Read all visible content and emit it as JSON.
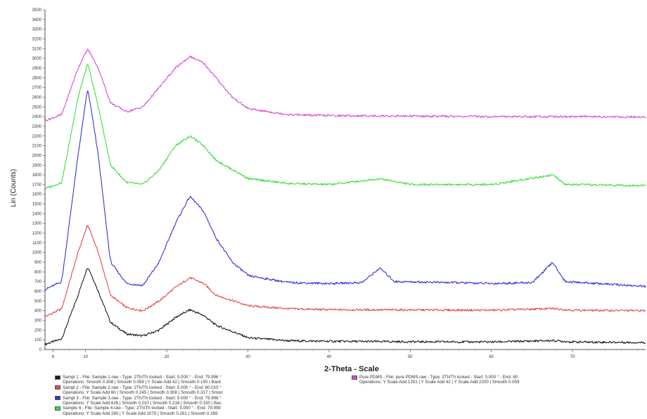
{
  "chart_data": {
    "type": "line",
    "title": "",
    "xlabel": "2-Theta - Scale",
    "ylabel": "Lin (Counts)",
    "xlim": [
      5,
      79
    ],
    "ylim": [
      0,
      3500
    ],
    "x_ticks": [
      "6",
      "10",
      "20",
      "30",
      "40",
      "50",
      "60",
      "70"
    ],
    "y_ticks": [
      "0",
      "100",
      "200",
      "300",
      "400",
      "500",
      "600",
      "700",
      "800",
      "900",
      "1000",
      "1100",
      "1200",
      "1300",
      "1400",
      "1500",
      "1600",
      "1700",
      "1800",
      "1900",
      "2000",
      "2100",
      "2200",
      "2300",
      "2400",
      "2500",
      "2600",
      "2700",
      "2800",
      "2900",
      "3000",
      "3100",
      "3200",
      "3300",
      "3400",
      "3500"
    ],
    "grid": false,
    "legend_position": "bottom",
    "series": [
      {
        "name": "Sampl 1",
        "color": "#1a1a1a",
        "baseline": 75,
        "peaks": [
          {
            "center": 10.2,
            "height": 790,
            "width": 1.6
          },
          {
            "center": 22.8,
            "height": 330,
            "width": 3.5
          },
          {
            "center": 28.5,
            "height": 60,
            "width": 0.6
          },
          {
            "center": 67.5,
            "height": 15,
            "width": 1.0
          }
        ],
        "points": [
          [
            5,
            55
          ],
          [
            7,
            110
          ],
          [
            9,
            560
          ],
          [
            10.2,
            860
          ],
          [
            11.5,
            600
          ],
          [
            13,
            280
          ],
          [
            15,
            160
          ],
          [
            17,
            140
          ],
          [
            19,
            200
          ],
          [
            21,
            330
          ],
          [
            22.8,
            410
          ],
          [
            24.5,
            350
          ],
          [
            26,
            250
          ],
          [
            28.5,
            170
          ],
          [
            30,
            120
          ],
          [
            35,
            90
          ],
          [
            40,
            85
          ],
          [
            50,
            80
          ],
          [
            60,
            78
          ],
          [
            67.5,
            92
          ],
          [
            70,
            78
          ],
          [
            79,
            72
          ]
        ],
        "legend_text": "Sampl 1 - File: Sample 1.raw - Type: 2Th/Th locked - Start: 5.000 ° - End: 79.996 °",
        "operations": "Operations: Smooth 0.308 | Smooth 0.059 | Y Scale Add 42 | Smooth 0.150 | Back"
      },
      {
        "name": "Sampl 2",
        "color": "#e24a4a",
        "baseline": 405,
        "peaks": [
          {
            "center": 10.2,
            "height": 880,
            "width": 1.6
          },
          {
            "center": 22.8,
            "height": 330,
            "width": 3.5
          },
          {
            "center": 67.5,
            "height": 15,
            "width": 1.0
          }
        ],
        "points": [
          [
            5,
            340
          ],
          [
            7,
            420
          ],
          [
            9,
            1000
          ],
          [
            10.2,
            1290
          ],
          [
            11.5,
            1000
          ],
          [
            13,
            560
          ],
          [
            15,
            430
          ],
          [
            17,
            400
          ],
          [
            19,
            500
          ],
          [
            21,
            640
          ],
          [
            22.8,
            740
          ],
          [
            24.5,
            680
          ],
          [
            26,
            560
          ],
          [
            30,
            450
          ],
          [
            35,
            420
          ],
          [
            40,
            410
          ],
          [
            50,
            408
          ],
          [
            60,
            405
          ],
          [
            67.5,
            422
          ],
          [
            70,
            405
          ],
          [
            79,
            400
          ]
        ],
        "legend_text": "Sampl 2 - File: Sample 2.raw - Type: 2Th/Th locked - Start: 5.000 ° - End: 80.010 °",
        "operations": "Operations: Y Scale Add 60 | Smooth 0.245 | Smooth 0.308 | Smooth 0.317 | Smoo"
      },
      {
        "name": "Sampl 3",
        "color": "#3434d8",
        "baseline": 660,
        "peaks": [
          {
            "center": 10.2,
            "height": 2050,
            "width": 1.6
          },
          {
            "center": 22.8,
            "height": 920,
            "width": 3.5
          },
          {
            "center": 46.2,
            "height": 170,
            "width": 0.6
          },
          {
            "center": 67.5,
            "height": 240,
            "width": 0.6
          }
        ],
        "points": [
          [
            5,
            620
          ],
          [
            7,
            700
          ],
          [
            9,
            2000
          ],
          [
            10.2,
            2700
          ],
          [
            11.5,
            2000
          ],
          [
            13,
            900
          ],
          [
            15,
            680
          ],
          [
            17,
            660
          ],
          [
            19,
            900
          ],
          [
            21,
            1300
          ],
          [
            22.8,
            1580
          ],
          [
            24.5,
            1420
          ],
          [
            26,
            1150
          ],
          [
            28,
            900
          ],
          [
            30,
            760
          ],
          [
            35,
            690
          ],
          [
            40,
            680
          ],
          [
            44,
            690
          ],
          [
            46.2,
            840
          ],
          [
            48,
            700
          ],
          [
            55,
            690
          ],
          [
            60,
            680
          ],
          [
            65,
            690
          ],
          [
            67.5,
            900
          ],
          [
            69,
            700
          ],
          [
            75,
            670
          ],
          [
            79,
            650
          ]
        ],
        "legend_text": "Sampl 3 - File: Sample 3.raw - Type: 2Th/Th locked - Start: 5.000 ° - End: 79.996 °",
        "operations": "Operations: Y Scale Add 626 | Smooth 0.210 | Smooth 0.218 | Smooth 0.150 | Bac"
      },
      {
        "name": "Sample 4",
        "color": "#3ddc3d",
        "baseline": 1690,
        "peaks": [
          {
            "center": 10.2,
            "height": 1270,
            "width": 1.6
          },
          {
            "center": 22.8,
            "height": 520,
            "width": 3.5
          },
          {
            "center": 46.2,
            "height": 60,
            "width": 0.8
          },
          {
            "center": 67.5,
            "height": 110,
            "width": 0.6
          }
        ],
        "points": [
          [
            5,
            1660
          ],
          [
            7,
            1720
          ],
          [
            9,
            2600
          ],
          [
            10.2,
            2950
          ],
          [
            11.5,
            2500
          ],
          [
            13,
            1900
          ],
          [
            15,
            1720
          ],
          [
            17,
            1700
          ],
          [
            19,
            1850
          ],
          [
            21,
            2100
          ],
          [
            22.8,
            2200
          ],
          [
            24.5,
            2100
          ],
          [
            26,
            1950
          ],
          [
            30,
            1760
          ],
          [
            35,
            1710
          ],
          [
            40,
            1700
          ],
          [
            46.2,
            1760
          ],
          [
            50,
            1700
          ],
          [
            60,
            1700
          ],
          [
            67.5,
            1800
          ],
          [
            69,
            1700
          ],
          [
            79,
            1690
          ]
        ],
        "legend_text": "Sample 4 - File: Sample 4.raw - Type: 2Th/Th locked - Start: 5.000 ° - End: 79.999",
        "operations": "Operations: Y Scale Add 280 | Y Scale Add 1070 | Smooth 0.261 | Smooth 0.269"
      },
      {
        "name": "Pure PDMS",
        "color": "#d54ad5",
        "baseline": 2400,
        "peaks": [
          {
            "center": 10.2,
            "height": 680,
            "width": 1.6
          },
          {
            "center": 22.8,
            "height": 620,
            "width": 3.5
          }
        ],
        "points": [
          [
            5,
            2360
          ],
          [
            7,
            2420
          ],
          [
            9,
            2900
          ],
          [
            10.2,
            3100
          ],
          [
            11.5,
            2900
          ],
          [
            13,
            2540
          ],
          [
            15,
            2450
          ],
          [
            17,
            2500
          ],
          [
            19,
            2700
          ],
          [
            21,
            2900
          ],
          [
            22.8,
            3020
          ],
          [
            24.5,
            2950
          ],
          [
            26,
            2800
          ],
          [
            28,
            2600
          ],
          [
            30,
            2480
          ],
          [
            35,
            2420
          ],
          [
            40,
            2410
          ],
          [
            50,
            2405
          ],
          [
            60,
            2400
          ],
          [
            70,
            2400
          ],
          [
            79,
            2395
          ]
        ],
        "legend_text": "Pure PDMS - File: pure PDMS.raw - Type: 2Th/Th locked - Start: 5.000 ° - End: 80",
        "operations": "Operations: Y Scale Add 1251 | Y Scale Add 42 | Y Scale Add 2200 | Smooth 0.059"
      }
    ]
  }
}
